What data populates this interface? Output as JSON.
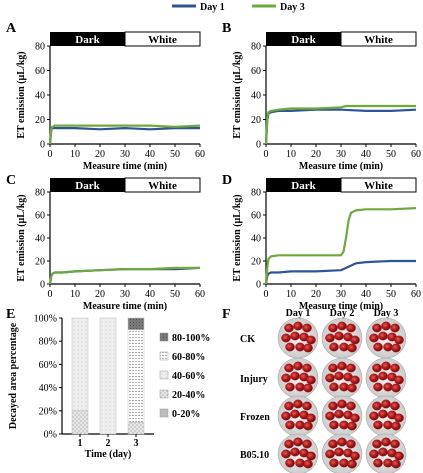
{
  "legend": {
    "items": [
      {
        "label": "Day 1",
        "color": "#2f5597"
      },
      {
        "label": "Day 3",
        "color": "#70a83c"
      }
    ]
  },
  "phases": {
    "dark": "Dark",
    "white": "White"
  },
  "chart_data": [
    {
      "panel": "A",
      "type": "line",
      "xlabel": "Measure time (min)",
      "ylabel": "ET emission (µL/kg)",
      "xlim": [
        0,
        60
      ],
      "ylim": [
        0,
        80
      ],
      "xticks": [
        0,
        10,
        20,
        30,
        40,
        50,
        60
      ],
      "yticks": [
        0,
        20,
        40,
        60,
        80
      ],
      "series": [
        {
          "name": "Day 1",
          "x": [
            0,
            0.5,
            1,
            2,
            5,
            10,
            20,
            30,
            40,
            50,
            60
          ],
          "y": [
            0,
            12,
            13,
            13,
            13,
            13,
            12,
            13,
            12,
            13,
            13
          ]
        },
        {
          "name": "Day 3",
          "x": [
            0,
            0.5,
            1,
            2,
            5,
            10,
            20,
            30,
            40,
            50,
            60
          ],
          "y": [
            0,
            13,
            14,
            15,
            15,
            15,
            15,
            15,
            15,
            14,
            15
          ]
        }
      ]
    },
    {
      "panel": "B",
      "type": "line",
      "xlabel": "Measure time (min)",
      "ylabel": "ET emission (µL/kg)",
      "xlim": [
        0,
        60
      ],
      "ylim": [
        0,
        80
      ],
      "xticks": [
        0,
        10,
        20,
        30,
        40,
        50,
        60
      ],
      "yticks": [
        0,
        20,
        40,
        60,
        80
      ],
      "series": [
        {
          "name": "Day 1",
          "x": [
            0,
            0.5,
            1,
            2,
            5,
            10,
            20,
            30,
            40,
            50,
            60
          ],
          "y": [
            0,
            20,
            25,
            26,
            27,
            27,
            28,
            28,
            27,
            27,
            28
          ]
        },
        {
          "name": "Day 3",
          "x": [
            0,
            0.5,
            1,
            2,
            5,
            10,
            20,
            30,
            32,
            40,
            50,
            60
          ],
          "y": [
            0,
            22,
            26,
            27,
            28,
            29,
            29,
            30,
            31,
            31,
            31,
            31
          ]
        }
      ]
    },
    {
      "panel": "C",
      "type": "line",
      "xlabel": "Measure time (min)",
      "ylabel": "ET emission (µL/kg)",
      "xlim": [
        0,
        60
      ],
      "ylim": [
        0,
        80
      ],
      "xticks": [
        0,
        10,
        20,
        30,
        40,
        50,
        60
      ],
      "yticks": [
        0,
        20,
        40,
        60,
        80
      ],
      "series": [
        {
          "name": "Day 1",
          "x": [
            0,
            0.5,
            1,
            2,
            5,
            10,
            20,
            30,
            40,
            50,
            60
          ],
          "y": [
            0,
            7,
            9,
            10,
            10,
            11,
            12,
            13,
            13,
            13,
            14
          ]
        },
        {
          "name": "Day 3",
          "x": [
            0,
            0.5,
            1,
            2,
            5,
            10,
            20,
            30,
            40,
            50,
            60
          ],
          "y": [
            0,
            7,
            9,
            10,
            10,
            11,
            12,
            13,
            13,
            14,
            14
          ]
        }
      ]
    },
    {
      "panel": "D",
      "type": "line",
      "xlabel": "Measure time (min)",
      "ylabel": "ET emission (µL/kg)",
      "xlim": [
        0,
        60
      ],
      "ylim": [
        0,
        80
      ],
      "xticks": [
        0,
        10,
        20,
        30,
        40,
        50,
        60
      ],
      "yticks": [
        0,
        20,
        40,
        60,
        80
      ],
      "series": [
        {
          "name": "Day 1",
          "x": [
            0,
            0.5,
            1,
            2,
            5,
            10,
            20,
            30,
            32,
            34,
            36,
            40,
            50,
            60
          ],
          "y": [
            0,
            7,
            9,
            10,
            10,
            11,
            11,
            12,
            14,
            16,
            18,
            19,
            20,
            20
          ]
        },
        {
          "name": "Day 3",
          "x": [
            0,
            0.5,
            1,
            2,
            5,
            10,
            20,
            30,
            31,
            32,
            33,
            34,
            36,
            40,
            50,
            60
          ],
          "y": [
            0,
            15,
            22,
            24,
            25,
            25,
            25,
            25,
            28,
            40,
            55,
            62,
            64,
            65,
            65,
            66
          ]
        }
      ]
    },
    {
      "panel": "E",
      "type": "bar",
      "stacked": true,
      "ylabel": "Decayed area percentage",
      "xlabel": "Time (day)",
      "categories": [
        "1",
        "2",
        "3"
      ],
      "ylim": [
        0,
        100
      ],
      "yticks": [
        "0%",
        "20%",
        "40%",
        "60%",
        "80%",
        "100%"
      ],
      "series": [
        {
          "name": "0-20%",
          "values": [
            0,
            0,
            0
          ]
        },
        {
          "name": "20-40%",
          "values": [
            20,
            0,
            10
          ]
        },
        {
          "name": "40-60%",
          "values": [
            80,
            100,
            0
          ]
        },
        {
          "name": "60-80%",
          "values": [
            0,
            0,
            80
          ]
        },
        {
          "name": "80-100%",
          "values": [
            0,
            0,
            10
          ]
        }
      ],
      "legend_order": [
        "80-100%",
        "60-80%",
        "40-60%",
        "20-40%",
        "0-20%"
      ]
    }
  ],
  "photo_grid": {
    "panel": "F",
    "columns": [
      "Day 1",
      "Day 2",
      "Day 3"
    ],
    "rows": [
      "CK",
      "Injury",
      "Frozen",
      "B05.10"
    ]
  }
}
